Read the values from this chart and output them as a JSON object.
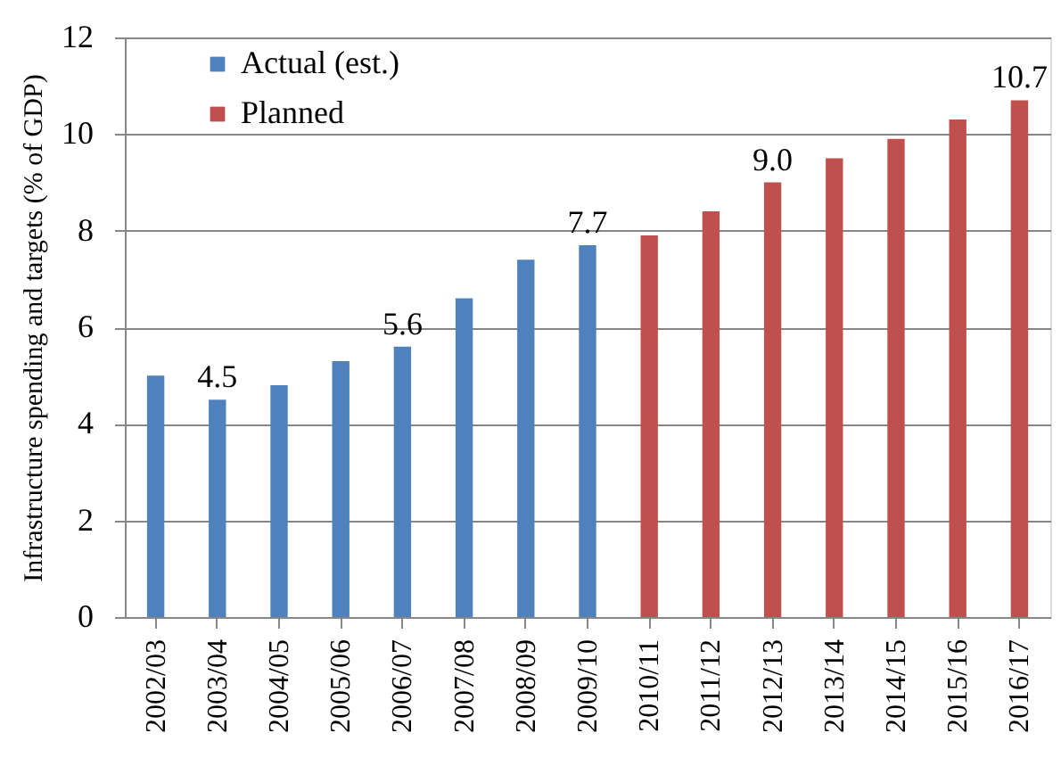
{
  "chart_data": {
    "type": "bar",
    "ylabel": "Infrastructure spending and targets (% of GDP)",
    "categories": [
      "2002/03",
      "2003/04",
      "2004/05",
      "2005/06",
      "2006/07",
      "2007/08",
      "2008/09",
      "2009/10",
      "2010/11",
      "2011/12",
      "2012/13",
      "2013/14",
      "2014/15",
      "2015/16",
      "2016/17"
    ],
    "series": [
      {
        "name": "Actual (est.)",
        "color": "#4f81bd",
        "values": [
          5.0,
          4.5,
          4.8,
          5.3,
          5.6,
          6.6,
          7.4,
          7.7,
          null,
          null,
          null,
          null,
          null,
          null,
          null
        ],
        "value_labels": [
          null,
          "4.5",
          null,
          null,
          "5.6",
          null,
          null,
          "7.7",
          null,
          null,
          null,
          null,
          null,
          null,
          null
        ]
      },
      {
        "name": "Planned",
        "color": "#c0504d",
        "values": [
          null,
          null,
          null,
          null,
          null,
          null,
          null,
          null,
          7.9,
          8.4,
          9.0,
          9.5,
          9.9,
          10.3,
          10.7
        ],
        "value_labels": [
          null,
          null,
          null,
          null,
          null,
          null,
          null,
          null,
          null,
          null,
          "9.0",
          null,
          null,
          null,
          "10.7"
        ]
      }
    ],
    "ylim": [
      0,
      12
    ],
    "yticks": [
      0,
      2,
      4,
      6,
      8,
      10,
      12
    ],
    "grid": "y",
    "legend": "top left"
  }
}
